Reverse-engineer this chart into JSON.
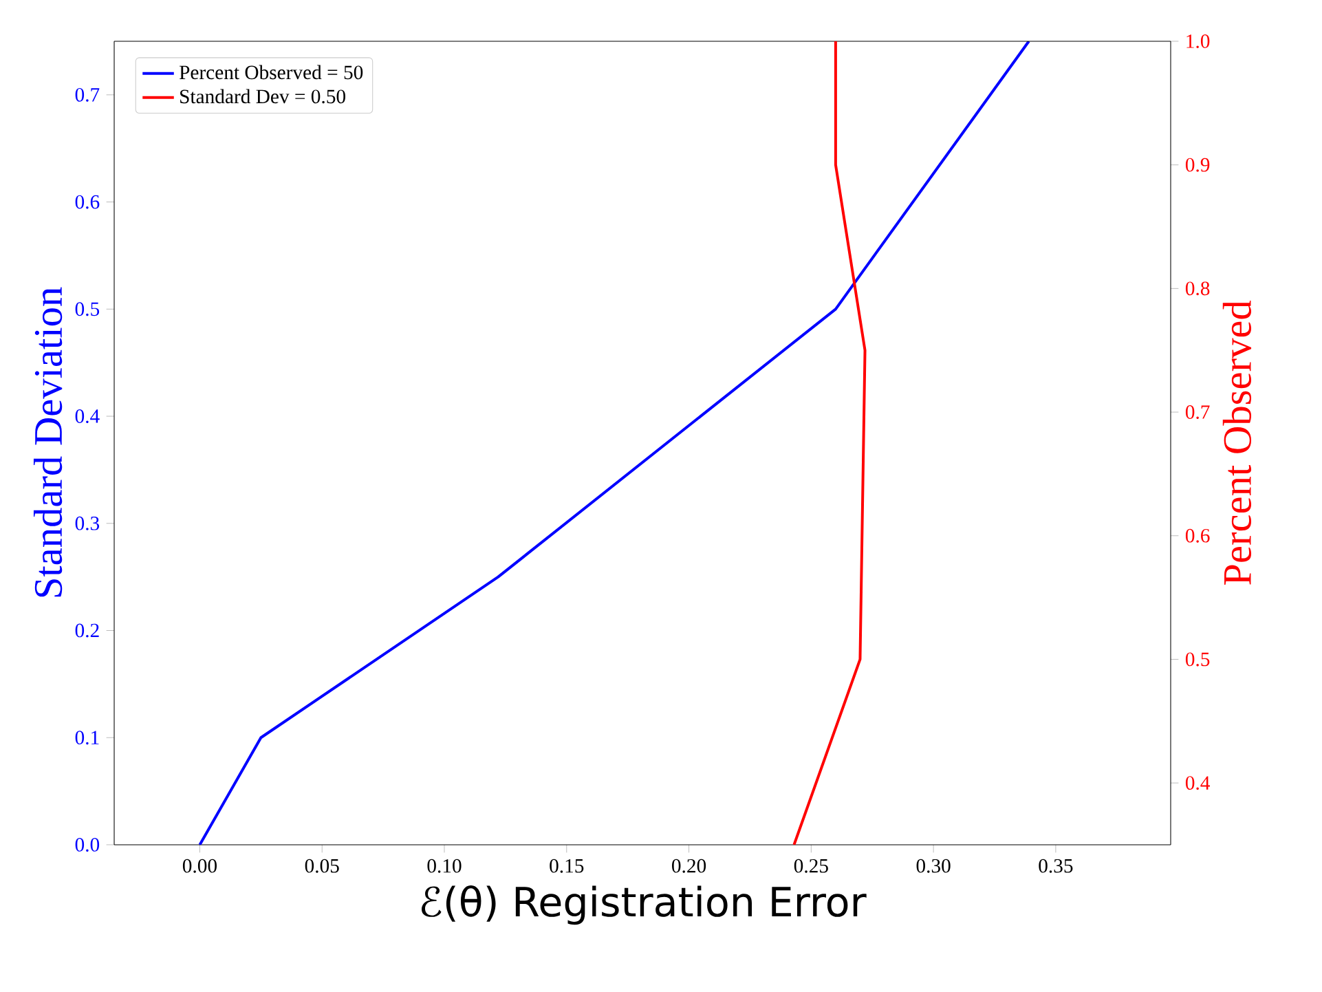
{
  "chart_data": {
    "type": "line",
    "xlabel": "ℰ(θ) Registration Error",
    "ylabel": "Standard Deviation",
    "y2label": "Percent Observed",
    "series": [
      {
        "name": "Percent Observed = 50",
        "color": "#0000ff",
        "x": [
          0.0,
          0.025,
          0.122,
          0.26,
          0.339
        ],
        "values": [
          0.0,
          0.1,
          0.25,
          0.5,
          0.75
        ]
      },
      {
        "name": "Standard Dev = 0.50",
        "color": "#ff0000",
        "axis": "y2",
        "x": [
          0.243,
          0.27,
          0.272,
          0.26,
          0.26
        ],
        "values": [
          0.35,
          0.5,
          0.75,
          0.9,
          1.0
        ]
      }
    ],
    "xlim": [
      -0.035,
      0.397
    ],
    "ylim": [
      0,
      0.75
    ],
    "y2lim": [
      0.35,
      1.0
    ],
    "xticks": [
      {
        "value": 0,
        "label": "0.00"
      },
      {
        "value": 0.05,
        "label": "0.05"
      },
      {
        "value": 0.1,
        "label": "0.10"
      },
      {
        "value": 0.15,
        "label": "0.15"
      },
      {
        "value": 0.2,
        "label": "0.20"
      },
      {
        "value": 0.25,
        "label": "0.25"
      },
      {
        "value": 0.3,
        "label": "0.30"
      },
      {
        "value": 0.35,
        "label": "0.35"
      }
    ],
    "yticks": [
      {
        "value": 0,
        "label": "0.0"
      },
      {
        "value": 0.1,
        "label": "0.1"
      },
      {
        "value": 0.2,
        "label": "0.2"
      },
      {
        "value": 0.3,
        "label": "0.3"
      },
      {
        "value": 0.4,
        "label": "0.4"
      },
      {
        "value": 0.5,
        "label": "0.5"
      },
      {
        "value": 0.6,
        "label": "0.6"
      },
      {
        "value": 0.7,
        "label": "0.7"
      }
    ],
    "y2ticks": [
      {
        "value": 0.4,
        "label": "0.4"
      },
      {
        "value": 0.5,
        "label": "0.5"
      },
      {
        "value": 0.6,
        "label": "0.6"
      },
      {
        "value": 0.7,
        "label": "0.7"
      },
      {
        "value": 0.8,
        "label": "0.8"
      },
      {
        "value": 0.9,
        "label": "0.9"
      },
      {
        "value": 1.0,
        "label": "1.0"
      }
    ],
    "grid": false,
    "legend": "top left",
    "marker": "none",
    "line_style": "solid"
  }
}
